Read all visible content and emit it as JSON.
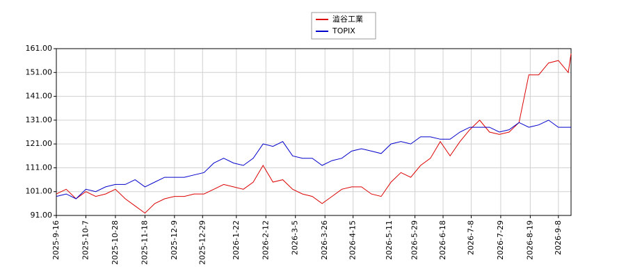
{
  "chart_data": {
    "type": "line",
    "x": [
      "2025-09-16",
      "2025-09-23",
      "2025-09-30",
      "2025-10-07",
      "2025-10-14",
      "2025-10-21",
      "2025-10-28",
      "2025-11-04",
      "2025-11-11",
      "2025-11-18",
      "2025-11-25",
      "2025-12-02",
      "2025-12-09",
      "2025-12-16",
      "2025-12-23",
      "2025-12-30",
      "2026-01-06",
      "2026-01-13",
      "2026-01-20",
      "2026-01-27",
      "2026-02-03",
      "2026-02-10",
      "2026-02-17",
      "2026-02-24",
      "2026-03-03",
      "2026-03-10",
      "2026-03-17",
      "2026-03-24",
      "2026-03-31",
      "2026-04-07",
      "2026-04-14",
      "2026-04-21",
      "2026-04-28",
      "2026-05-05",
      "2026-05-12",
      "2026-05-19",
      "2026-05-26",
      "2026-06-02",
      "2026-06-09",
      "2026-06-16",
      "2026-06-23",
      "2026-06-30",
      "2026-07-07",
      "2026-07-14",
      "2026-07-21",
      "2026-07-28",
      "2026-08-04",
      "2026-08-11",
      "2026-08-18",
      "2026-08-25",
      "2026-09-01",
      "2026-09-08",
      "2026-09-15",
      "2026-09-17"
    ],
    "series": [
      {
        "name": "澁谷工業",
        "color": "#dd0000",
        "values": [
          100,
          102,
          98,
          101,
          99,
          100,
          102,
          98,
          95,
          92,
          96,
          98,
          99,
          99,
          100,
          100,
          102,
          104,
          103,
          102,
          105,
          112,
          105,
          106,
          102,
          100,
          99,
          96,
          99,
          102,
          103,
          103,
          100,
          99,
          105,
          109,
          107,
          112,
          115,
          122,
          116,
          122,
          127,
          131,
          126,
          125,
          126,
          130,
          150,
          150,
          155,
          156,
          151,
          159
        ]
      },
      {
        "name": "TOPIX",
        "color": "#0000cc",
        "values": [
          99,
          100,
          98,
          102,
          101,
          103,
          104,
          104,
          106,
          103,
          105,
          107,
          107,
          107,
          108,
          109,
          113,
          115,
          113,
          112,
          115,
          121,
          120,
          122,
          116,
          115,
          115,
          112,
          114,
          115,
          118,
          119,
          118,
          117,
          121,
          122,
          121,
          124,
          124,
          123,
          123,
          126,
          128,
          128,
          128,
          126,
          127,
          130,
          128,
          129,
          131,
          128,
          128,
          128
        ]
      }
    ],
    "xlim": [
      "2025-09-16",
      "2026-09-17"
    ],
    "xticks": [
      {
        "value": "2025-09-16",
        "label": "2025-9-16"
      },
      {
        "value": "2025-10-07",
        "label": "2025-10-7"
      },
      {
        "value": "2025-10-28",
        "label": "2025-10-28"
      },
      {
        "value": "2025-11-18",
        "label": "2025-11-18"
      },
      {
        "value": "2025-12-09",
        "label": "2025-12-9"
      },
      {
        "value": "2025-12-29",
        "label": "2025-12-29"
      },
      {
        "value": "2026-01-22",
        "label": "2026-1-22"
      },
      {
        "value": "2026-02-12",
        "label": "2026-2-12"
      },
      {
        "value": "2026-03-05",
        "label": "2026-3-5"
      },
      {
        "value": "2026-03-26",
        "label": "2026-3-26"
      },
      {
        "value": "2026-04-15",
        "label": "2026-4-15"
      },
      {
        "value": "2026-05-11",
        "label": "2026-5-11"
      },
      {
        "value": "2026-05-29",
        "label": "2026-5-29"
      },
      {
        "value": "2026-06-18",
        "label": "2026-6-18"
      },
      {
        "value": "2026-07-08",
        "label": "2026-7-8"
      },
      {
        "value": "2026-07-29",
        "label": "2026-7-29"
      },
      {
        "value": "2026-08-19",
        "label": "2026-8-19"
      },
      {
        "value": "2026-09-08",
        "label": "2026-9-8"
      }
    ],
    "ylim": [
      91,
      161
    ],
    "yticks": [
      {
        "value": 91,
        "label": "91.00"
      },
      {
        "value": 101,
        "label": "101.00"
      },
      {
        "value": 111,
        "label": "111.00"
      },
      {
        "value": 121,
        "label": "121.00"
      },
      {
        "value": 131,
        "label": "131.00"
      },
      {
        "value": 141,
        "label": "141.00"
      },
      {
        "value": 151,
        "label": "151.00"
      },
      {
        "value": 161,
        "label": "161.00"
      }
    ],
    "grid": true
  }
}
